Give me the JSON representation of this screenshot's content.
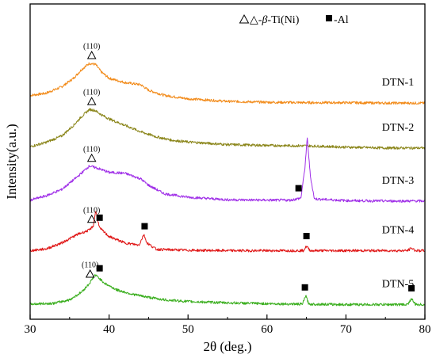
{
  "chart_data": {
    "type": "line",
    "xlabel": "2θ (deg.)",
    "ylabel": "Intensity(a.u.)",
    "xlim": [
      30,
      80
    ],
    "xticks": [
      "30",
      "40",
      "50",
      "60",
      "70",
      "80"
    ],
    "grid": false,
    "legend": {
      "placement": "top",
      "entries": [
        {
          "marker": "triangle",
          "prefix": "△-",
          "symbol": "β",
          "suffix": "-Ti(Ni)"
        },
        {
          "marker": "square",
          "label": "-Al"
        }
      ]
    },
    "series": [
      {
        "name": "DTN-1",
        "color": "#f28b1a",
        "offset": 4.7,
        "points": [
          [
            30,
            0.2
          ],
          [
            32,
            0.25
          ],
          [
            34,
            0.4
          ],
          [
            35.5,
            0.6
          ],
          [
            36.5,
            0.8
          ],
          [
            37.5,
            0.95
          ],
          [
            38.3,
            0.92
          ],
          [
            39,
            0.75
          ],
          [
            40,
            0.6
          ],
          [
            42,
            0.5
          ],
          [
            44,
            0.45
          ],
          [
            45,
            0.32
          ],
          [
            47,
            0.2
          ],
          [
            50,
            0.12
          ],
          [
            55,
            0.06
          ],
          [
            60,
            0.04
          ],
          [
            65,
            0.03
          ],
          [
            70,
            0.03
          ],
          [
            75,
            0.02
          ],
          [
            80,
            0.02
          ]
        ],
        "annotations": [
          {
            "x": 37.8,
            "marker": "triangle",
            "text": "(110)"
          }
        ]
      },
      {
        "name": "DTN-2",
        "color": "#8a8519",
        "offset": 3.65,
        "points": [
          [
            30,
            0.05
          ],
          [
            32,
            0.15
          ],
          [
            34,
            0.3
          ],
          [
            35.5,
            0.55
          ],
          [
            36.5,
            0.75
          ],
          [
            37.5,
            0.92
          ],
          [
            38.2,
            0.9
          ],
          [
            39,
            0.8
          ],
          [
            40,
            0.7
          ],
          [
            42,
            0.55
          ],
          [
            44,
            0.4
          ],
          [
            46,
            0.28
          ],
          [
            48,
            0.2
          ],
          [
            50,
            0.16
          ],
          [
            55,
            0.1
          ],
          [
            60,
            0.08
          ],
          [
            65,
            0.07
          ],
          [
            70,
            0.04
          ],
          [
            75,
            0.02
          ],
          [
            80,
            0.02
          ]
        ],
        "annotations": [
          {
            "x": 37.8,
            "marker": "triangle",
            "text": "(110)"
          }
        ]
      },
      {
        "name": "DTN-3",
        "color": "#a030e8",
        "offset": 2.4,
        "points": [
          [
            30,
            0.05
          ],
          [
            32,
            0.15
          ],
          [
            34,
            0.3
          ],
          [
            36,
            0.6
          ],
          [
            37.5,
            0.85
          ],
          [
            38.5,
            0.8
          ],
          [
            40,
            0.7
          ],
          [
            42,
            0.68
          ],
          [
            44,
            0.55
          ],
          [
            45,
            0.4
          ],
          [
            47,
            0.2
          ],
          [
            50,
            0.12
          ],
          [
            55,
            0.06
          ],
          [
            60,
            0.05
          ],
          [
            63,
            0.05
          ],
          [
            64.3,
            0.1
          ],
          [
            64.8,
            0.8
          ],
          [
            65.1,
            1.5
          ],
          [
            65.5,
            0.6
          ],
          [
            66,
            0.08
          ],
          [
            70,
            0.04
          ],
          [
            75,
            0.03
          ],
          [
            80,
            0.03
          ]
        ],
        "annotations": [
          {
            "x": 37.8,
            "marker": "triangle",
            "text": "(110)"
          },
          {
            "x": 64.0,
            "marker": "square",
            "text": ""
          }
        ]
      },
      {
        "name": "DTN-4",
        "color": "#e01818",
        "offset": 1.25,
        "points": [
          [
            30,
            0.02
          ],
          [
            32,
            0.06
          ],
          [
            34,
            0.2
          ],
          [
            36,
            0.4
          ],
          [
            37.5,
            0.5
          ],
          [
            38.0,
            0.6
          ],
          [
            38.3,
            0.95
          ],
          [
            38.8,
            0.55
          ],
          [
            40,
            0.35
          ],
          [
            42,
            0.2
          ],
          [
            43.8,
            0.15
          ],
          [
            44.4,
            0.4
          ],
          [
            44.8,
            0.2
          ],
          [
            46,
            0.05
          ],
          [
            50,
            0.03
          ],
          [
            55,
            0.02
          ],
          [
            60,
            0.02
          ],
          [
            64.6,
            0.02
          ],
          [
            65.0,
            0.12
          ],
          [
            65.5,
            0.02
          ],
          [
            70,
            0.02
          ],
          [
            77.8,
            0.02
          ],
          [
            78.3,
            0.08
          ],
          [
            78.8,
            0.02
          ],
          [
            80,
            0.02
          ]
        ],
        "annotations": [
          {
            "x": 37.8,
            "marker": "triangle",
            "text": "(110)"
          },
          {
            "x": 38.8,
            "marker": "square",
            "text": ""
          },
          {
            "x": 44.5,
            "marker": "square",
            "text": ""
          },
          {
            "x": 65.0,
            "marker": "square",
            "text": ""
          }
        ]
      },
      {
        "name": "DTN-5",
        "color": "#3aae1e",
        "offset": 0.0,
        "points": [
          [
            30,
            0.02
          ],
          [
            33,
            0.04
          ],
          [
            35,
            0.12
          ],
          [
            36.5,
            0.3
          ],
          [
            37.5,
            0.5
          ],
          [
            38.2,
            0.7
          ],
          [
            38.6,
            0.65
          ],
          [
            39.5,
            0.5
          ],
          [
            41,
            0.35
          ],
          [
            43,
            0.25
          ],
          [
            45,
            0.18
          ],
          [
            47,
            0.12
          ],
          [
            50,
            0.08
          ],
          [
            55,
            0.05
          ],
          [
            60,
            0.03
          ],
          [
            64.5,
            0.02
          ],
          [
            64.9,
            0.22
          ],
          [
            65.3,
            0.02
          ],
          [
            70,
            0.01
          ],
          [
            77.8,
            0.01
          ],
          [
            78.3,
            0.15
          ],
          [
            78.8,
            0.01
          ],
          [
            80,
            0.01
          ]
        ],
        "annotations": [
          {
            "x": 37.6,
            "marker": "triangle",
            "text": "(110)"
          },
          {
            "x": 38.8,
            "marker": "square",
            "text": ""
          },
          {
            "x": 64.8,
            "marker": "square",
            "text": ""
          },
          {
            "x": 78.3,
            "marker": "square",
            "text": ""
          }
        ]
      }
    ]
  }
}
